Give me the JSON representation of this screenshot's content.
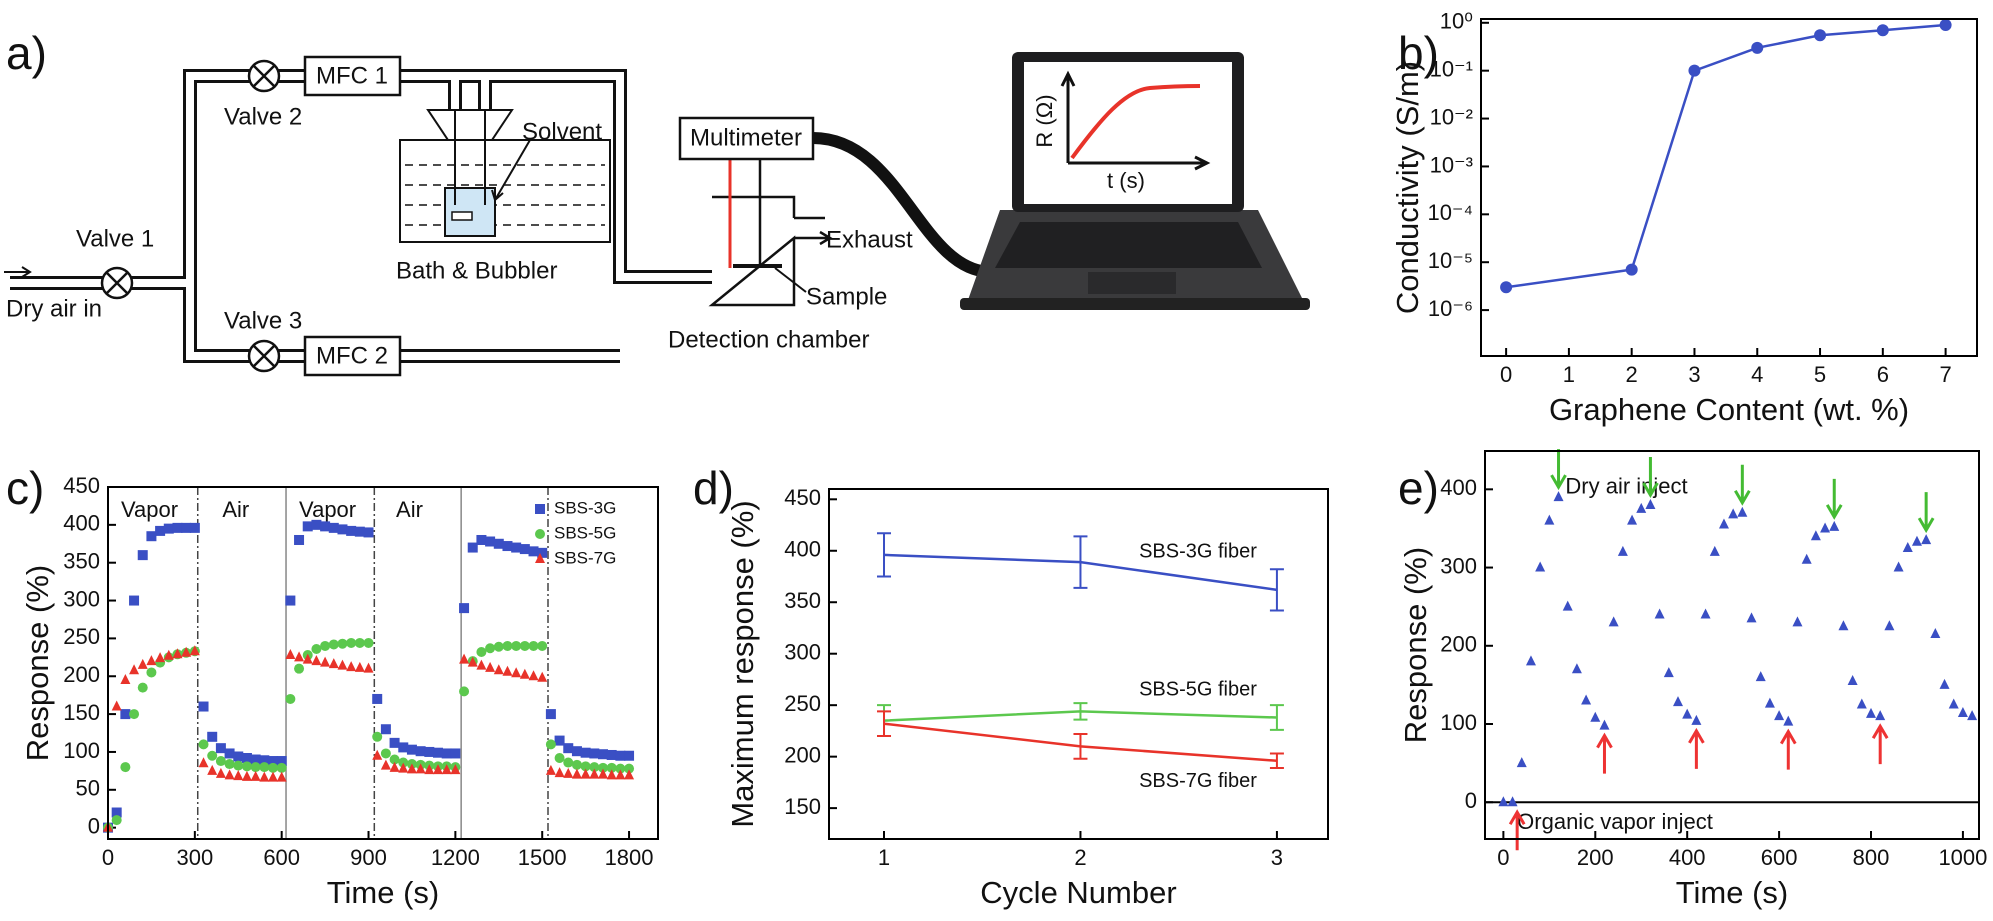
{
  "diagram": {
    "label": "a)",
    "valve_1": "Valve 1",
    "valve_2": "Valve 2",
    "valve_3": "Valve 3",
    "mfc_1": "MFC 1",
    "mfc_2": "MFC 2",
    "solvent": "Solvent",
    "bath": "Bath & Bubbler",
    "inlet": "Dry air in",
    "multimeter": "Multimeter",
    "exhaust": "Exhaust",
    "sample": "Sample",
    "chamber": "Detection chamber",
    "screen_y": "R (Ω)",
    "screen_x": "t (s)"
  },
  "chart_data": [
    {
      "type": "line",
      "label": "b)",
      "xlabel": "Graphene Content (wt. %)",
      "ylabel": "Conductivity (S/m)",
      "ylog": true,
      "x": [
        0,
        2,
        3,
        4,
        5,
        6,
        7
      ],
      "series": [
        {
          "name": "Conductivity",
          "color": "#3a4fc4",
          "marker": "circle",
          "values": [
            3e-06,
            7e-06,
            0.1,
            0.3,
            0.55,
            0.7,
            0.9
          ]
        }
      ],
      "xlim": [
        -0.4,
        7.5
      ],
      "xticks": [
        0,
        1,
        2,
        3,
        4,
        5,
        6,
        7
      ],
      "ylim": [
        1.1e-07,
        1.2
      ],
      "yticks": [
        {
          "value": 1e-06,
          "label": "10⁻⁶"
        },
        {
          "value": 1e-05,
          "label": "10⁻⁵"
        },
        {
          "value": 0.0001,
          "label": "10⁻⁴"
        },
        {
          "value": 0.001,
          "label": "10⁻³"
        },
        {
          "value": 0.01,
          "label": "10⁻²"
        },
        {
          "value": 0.1,
          "label": "10⁻¹"
        },
        {
          "value": 1,
          "label": "10⁰"
        }
      ]
    },
    {
      "type": "scatter",
      "label": "c)",
      "xlabel": "Time (s)",
      "ylabel": "Response (%)",
      "legend": "upper right",
      "x": [
        0,
        30,
        60,
        90,
        120,
        150,
        180,
        210,
        240,
        270,
        300,
        330,
        360,
        390,
        420,
        450,
        480,
        510,
        540,
        570,
        600,
        630,
        660,
        690,
        720,
        750,
        780,
        810,
        840,
        870,
        900,
        930,
        960,
        990,
        1020,
        1050,
        1080,
        1110,
        1140,
        1170,
        1200,
        1230,
        1260,
        1290,
        1320,
        1350,
        1380,
        1410,
        1440,
        1470,
        1500,
        1530,
        1560,
        1590,
        1620,
        1650,
        1680,
        1710,
        1740,
        1770,
        1800
      ],
      "series": [
        {
          "name": "SBS-3G",
          "color": "#3a4fc4",
          "marker": "square",
          "values": [
            0,
            20,
            150,
            300,
            360,
            385,
            392,
            395,
            396,
            396,
            396,
            160,
            120,
            105,
            98,
            94,
            92,
            90,
            89,
            88,
            88,
            300,
            380,
            398,
            400,
            398,
            396,
            394,
            392,
            391,
            390,
            170,
            130,
            112,
            106,
            103,
            101,
            100,
            99,
            98,
            98,
            290,
            370,
            380,
            378,
            375,
            372,
            370,
            368,
            365,
            363,
            150,
            115,
            105,
            101,
            99,
            98,
            97,
            96,
            95,
            95
          ]
        },
        {
          "name": "SBS-5G",
          "color": "#5cc84e",
          "marker": "circle",
          "values": [
            0,
            10,
            80,
            150,
            185,
            205,
            218,
            225,
            229,
            231,
            233,
            110,
            95,
            88,
            84,
            82,
            81,
            80,
            80,
            79,
            79,
            170,
            210,
            228,
            236,
            240,
            242,
            243,
            244,
            244,
            244,
            120,
            98,
            90,
            86,
            84,
            83,
            82,
            81,
            81,
            80,
            180,
            220,
            232,
            237,
            239,
            240,
            240,
            240,
            240,
            240,
            110,
            92,
            86,
            83,
            81,
            80,
            79,
            79,
            78,
            78
          ]
        },
        {
          "name": "SBS-7G",
          "color": "#e8332a",
          "marker": "triangle",
          "values": [
            0,
            160,
            195,
            208,
            215,
            220,
            224,
            227,
            229,
            231,
            233,
            85,
            75,
            71,
            69,
            68,
            67,
            67,
            66,
            66,
            66,
            228,
            225,
            222,
            220,
            218,
            216,
            214,
            212,
            211,
            210,
            95,
            82,
            79,
            78,
            77,
            77,
            76,
            76,
            76,
            76,
            222,
            218,
            214,
            211,
            208,
            206,
            204,
            202,
            200,
            198,
            75,
            72,
            71,
            70,
            70,
            70,
            70,
            69,
            69,
            69
          ]
        }
      ],
      "xlim": [
        0,
        1900
      ],
      "xticks": [
        0,
        300,
        600,
        900,
        1200,
        1500,
        1800
      ],
      "ylim": [
        -15,
        450
      ],
      "yticks": [
        0,
        50,
        100,
        150,
        200,
        250,
        300,
        350,
        400,
        450
      ],
      "vlines": [
        310,
        615,
        920,
        1220,
        1520
      ],
      "annotations": [
        {
          "text": "Vapor",
          "x": 45,
          "y": 418
        },
        {
          "text": "Air",
          "x": 395,
          "y": 418
        },
        {
          "text": "Vapor",
          "x": 660,
          "y": 418
        },
        {
          "text": "Air",
          "x": 995,
          "y": 418
        }
      ]
    },
    {
      "type": "line",
      "label": "d)",
      "xlabel": "Cycle Number",
      "ylabel": "Maximum response (%)",
      "legend": "inline",
      "x": [
        1,
        2,
        3
      ],
      "series": [
        {
          "name": "SBS-3G fiber",
          "color": "#3a4fc4",
          "values": [
            396,
            389,
            362
          ],
          "errors": [
            21,
            25,
            20
          ]
        },
        {
          "name": "SBS-5G fiber",
          "color": "#5cc84e",
          "values": [
            235,
            244,
            238
          ],
          "errors": [
            15,
            8,
            12
          ]
        },
        {
          "name": "SBS-7G fiber",
          "color": "#e8332a",
          "values": [
            232,
            210,
            196
          ],
          "errors": [
            12,
            12,
            7
          ]
        }
      ],
      "xlim": [
        0.72,
        3.26
      ],
      "xticks": [
        1,
        2,
        3
      ],
      "ylim": [
        120,
        460
      ],
      "yticks": [
        150,
        200,
        250,
        300,
        350,
        400,
        450
      ]
    },
    {
      "type": "scatter",
      "label": "e)",
      "xlabel": "Time (s)",
      "ylabel": "Response (%)",
      "x": [
        0,
        20,
        40,
        60,
        80,
        100,
        120,
        140,
        160,
        180,
        200,
        220,
        240,
        260,
        280,
        300,
        320,
        340,
        360,
        380,
        400,
        420,
        440,
        460,
        480,
        500,
        520,
        540,
        560,
        580,
        600,
        620,
        640,
        660,
        680,
        700,
        720,
        740,
        760,
        780,
        800,
        820,
        840,
        860,
        880,
        900,
        920,
        940,
        960,
        980,
        1000,
        1020
      ],
      "series": [
        {
          "name": "Response",
          "color": "#3a4fc4",
          "marker": "triangle",
          "values": [
            0,
            0,
            50,
            180,
            300,
            360,
            390,
            250,
            170,
            130,
            108,
            98,
            230,
            320,
            360,
            375,
            380,
            240,
            165,
            128,
            112,
            104,
            240,
            320,
            355,
            368,
            370,
            235,
            160,
            126,
            110,
            103,
            230,
            310,
            340,
            350,
            352,
            225,
            155,
            125,
            113,
            110,
            225,
            300,
            325,
            333,
            335,
            215,
            150,
            125,
            114,
            110
          ]
        }
      ],
      "xlim": [
        -40,
        1035
      ],
      "xticks": [
        0,
        200,
        400,
        600,
        800,
        1000
      ],
      "ylim": [
        -47,
        449
      ],
      "yticks": [
        0,
        100,
        200,
        300,
        400
      ],
      "hline": 0,
      "arrows": [
        {
          "color": "#44bb33",
          "direction": "down",
          "x": [
            120,
            320,
            520,
            720,
            920
          ]
        },
        {
          "color": "#ee3333",
          "direction": "up",
          "x": [
            30,
            220,
            420,
            620,
            820
          ]
        }
      ],
      "annotations": [
        {
          "text": "Dry air inject",
          "x": 135,
          "y": 402
        },
        {
          "text": "Organic vapor inject",
          "x": 30,
          "y": -27
        }
      ]
    }
  ]
}
